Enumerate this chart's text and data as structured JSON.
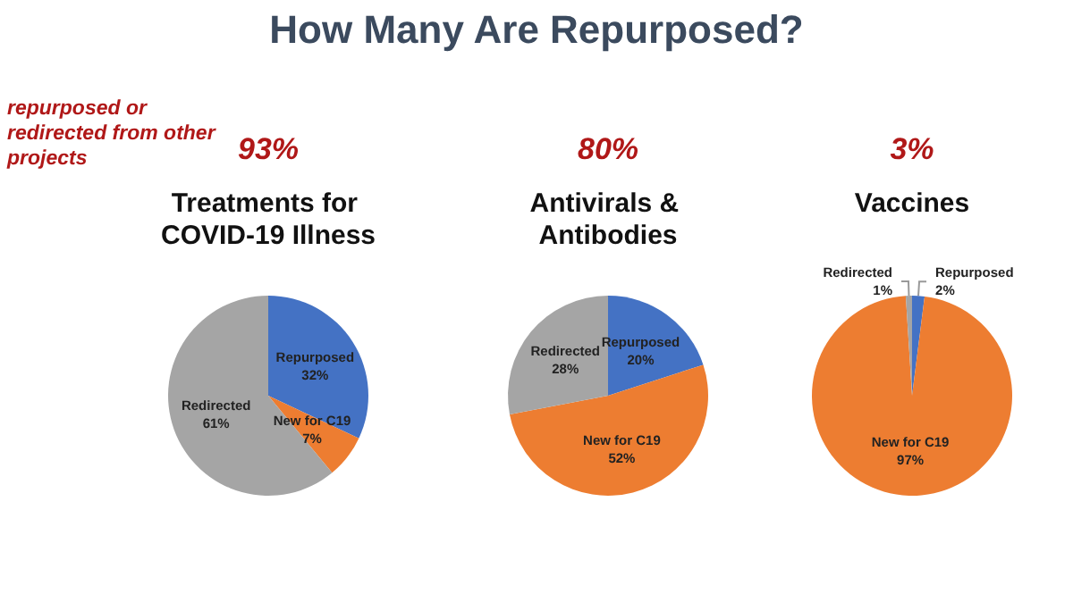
{
  "chart_data": [
    {
      "type": "other",
      "title": "How Many Are Repurposed?",
      "annotations": [
        "repurposed or redirected from other projects"
      ]
    },
    {
      "type": "pie",
      "subtitle": "93%",
      "title": "Treatments for COVID-19 Illness",
      "categories": [
        "Repurposed",
        "New for C19",
        "Redirected"
      ],
      "values": [
        32,
        7,
        61
      ],
      "colors": [
        "#4472c4",
        "#ed7d31",
        "#a5a5a5"
      ],
      "value_labels": [
        "32%",
        "7%",
        "61%"
      ]
    },
    {
      "type": "pie",
      "subtitle": "80%",
      "title": "Antivirals & Antibodies",
      "categories": [
        "Repurposed",
        "New for C19",
        "Redirected"
      ],
      "values": [
        20,
        52,
        28
      ],
      "colors": [
        "#4472c4",
        "#ed7d31",
        "#a5a5a5"
      ],
      "value_labels": [
        "20%",
        "52%",
        "28%"
      ]
    },
    {
      "type": "pie",
      "subtitle": "3%",
      "title": "Vaccines",
      "categories": [
        "Repurposed",
        "New for C19",
        "Redirected"
      ],
      "values": [
        2,
        97,
        1
      ],
      "colors": [
        "#4472c4",
        "#ed7d31",
        "#a5a5a5"
      ],
      "value_labels": [
        "2%",
        "97%",
        "1%"
      ]
    }
  ]
}
